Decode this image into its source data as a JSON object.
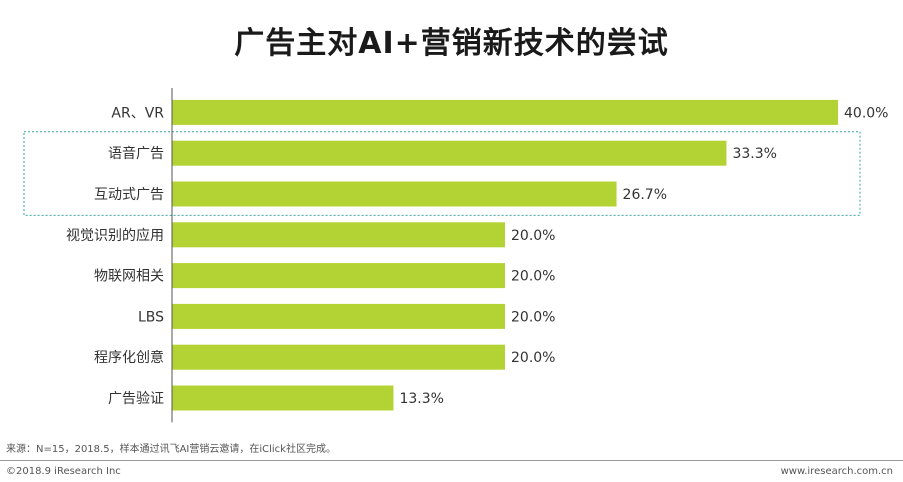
{
  "header": {
    "title": "广告主对AI+营销新技术的尝试"
  },
  "chart_data": {
    "type": "bar",
    "orientation": "horizontal",
    "title": "广告主对AI+营销新技术的尝试",
    "categories": [
      "AR、VR",
      "语音广告",
      "互动式广告",
      "视觉识别的应用",
      "物联网相关",
      "LBS",
      "程序化创意",
      "广告验证"
    ],
    "series": [
      {
        "values": [
          40.0,
          33.3,
          26.7,
          20.0,
          20.0,
          20.0,
          20.0,
          13.3
        ]
      }
    ],
    "value_labels": [
      "40.0%",
      "33.3%",
      "26.7%",
      "20.0%",
      "20.0%",
      "20.0%",
      "20.0%",
      "13.3%"
    ],
    "xlim": [
      0,
      40.0
    ],
    "grid": false,
    "highlight_categories": [
      "语音广告",
      "互动式广告"
    ],
    "bar_color": "#b3d233",
    "highlight_color": "#3aa7a7"
  },
  "footer": {
    "source": "来源：N=15，2018.5，样本通过讯飞AI营销云邀请，在iClick社区完成。",
    "copyright": "©2018.9 iResearch Inc",
    "site": "www.iresearch.com.cn"
  }
}
